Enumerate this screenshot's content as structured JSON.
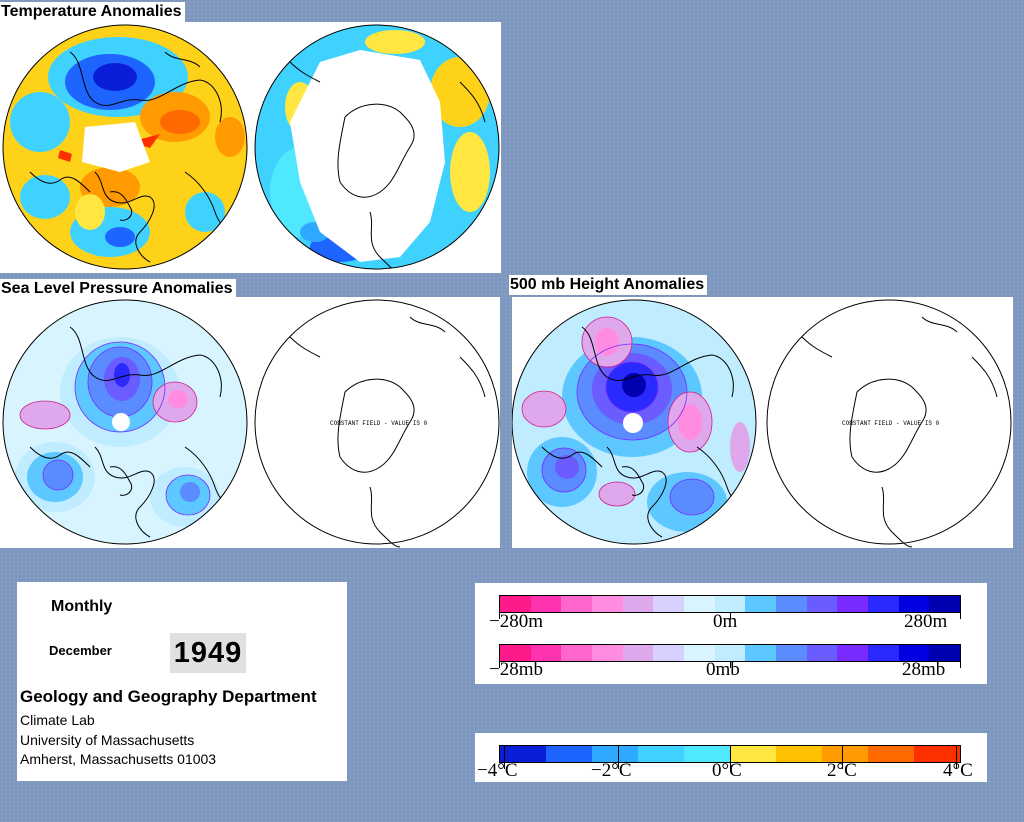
{
  "panels": {
    "temperature": {
      "title": "Temperature Anomalies"
    },
    "slp": {
      "title": "Sea Level Pressure Anomalies",
      "constant_note": "CONSTANT FIELD - VALUE IS 0"
    },
    "height500": {
      "title": "500 mb Height Anomalies",
      "constant_note": "CONSTANT FIELD - VALUE IS 0"
    }
  },
  "info": {
    "period": "Monthly",
    "month": "December",
    "year": "1949",
    "department": "Geology and Geography Department",
    "lab": "Climate Lab",
    "university": "University of Massachusetts",
    "address": "Amherst, Massachusetts 01003"
  },
  "legends": {
    "height": {
      "min": "−280m",
      "mid": "0m",
      "max": "280m"
    },
    "pressure": {
      "min": "−28mb",
      "mid": "0mb",
      "max": "28mb"
    },
    "temperature": {
      "t1": "−4°C",
      "t2": "−2°C",
      "t3": "0°C",
      "t4": "2°C",
      "t5": "4°C"
    }
  },
  "colors": {
    "background": "#7d97bf",
    "anomaly_scale": [
      "#ff1a8c",
      "#ff33b0",
      "#ff66cc",
      "#ff8ce0",
      "#e0a8ec",
      "#d8d0ff",
      "#d8f4ff",
      "#c0ecff",
      "#5cc8ff",
      "#5a8cff",
      "#6a5cff",
      "#7a2bff",
      "#2a2aff",
      "#0000e0",
      "#0000b0"
    ],
    "temperature_scale": [
      "#0a1ed8",
      "#1e64ff",
      "#2fa8ff",
      "#3fd2ff",
      "#4fe8ff",
      "#ffe640",
      "#ffc200",
      "#ff9a00",
      "#ff6a00",
      "#ff3000"
    ]
  }
}
